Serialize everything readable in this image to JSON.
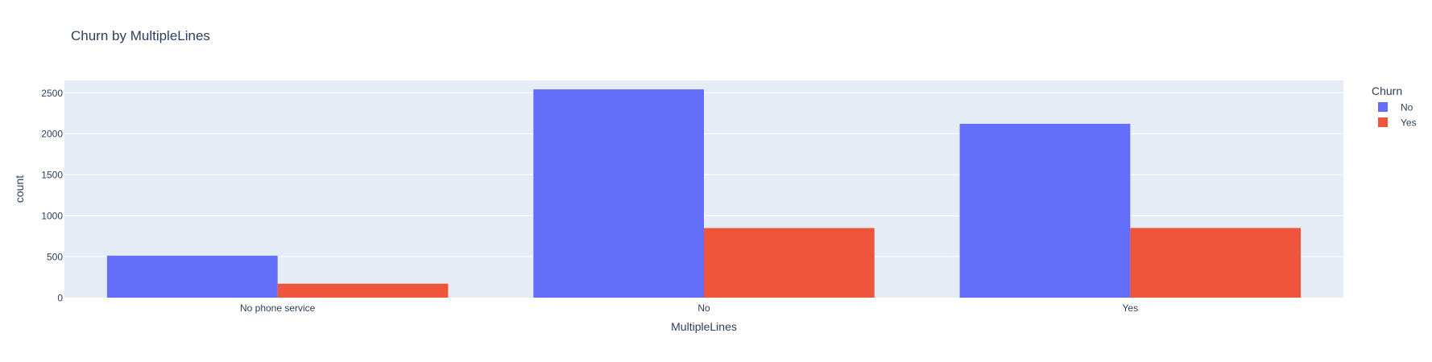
{
  "chart_data": {
    "type": "bar",
    "title": "Churn by MultipleLines",
    "xlabel": "MultipleLines",
    "ylabel": "count",
    "categories": [
      "No phone service",
      "No",
      "Yes"
    ],
    "series": [
      {
        "name": "No",
        "values": [
          512,
          2541,
          2121
        ]
      },
      {
        "name": "Yes",
        "values": [
          170,
          849,
          850
        ]
      }
    ],
    "ylim": [
      0,
      2650
    ],
    "yticks": [
      0,
      500,
      1000,
      1500,
      2000,
      2500
    ],
    "legend_title": "Churn",
    "legend_position": "top-right",
    "grid": true
  },
  "colors": {
    "No": "#636efa",
    "Yes": "#ef553b",
    "plot_bg": "#e5ecf6",
    "grid": "#ffffff",
    "text": "#2a3f5f"
  }
}
